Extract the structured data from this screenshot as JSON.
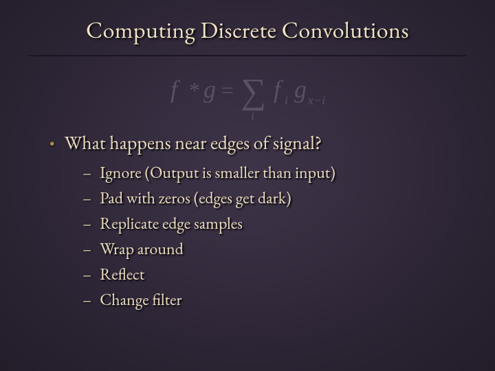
{
  "title": "Computing Discrete Convolutions",
  "formula": {
    "lhs_f": "f",
    "lhs_star": "*",
    "lhs_g": "g",
    "eq": "=",
    "sum_index": "i",
    "term_f": "f",
    "term_f_sub": "i",
    "term_g": "g",
    "term_g_sub": "x−i",
    "text_color": "#5a4f63",
    "fontsize_main": 36,
    "fontsize_sub": 18
  },
  "bullet": {
    "marker": "•",
    "text": "What happens near edges of signal?"
  },
  "subitems": [
    "Ignore (Output is smaller than input)",
    "Pad with zeros (edges get dark)",
    "Replicate edge samples",
    "Wrap around",
    "Reflect",
    "Change filter"
  ],
  "colors": {
    "background_center": "#3e3448",
    "background_edge": "#231d2a",
    "title_color": "#f0e2c4",
    "body_color": "#ecddc0",
    "bullet_color": "#a98a4a",
    "rule_color": "#1a1520"
  },
  "typography": {
    "title_fontsize": 34,
    "bullet_fontsize": 28,
    "sub_fontsize": 24,
    "font_family": "Garamond serif"
  }
}
